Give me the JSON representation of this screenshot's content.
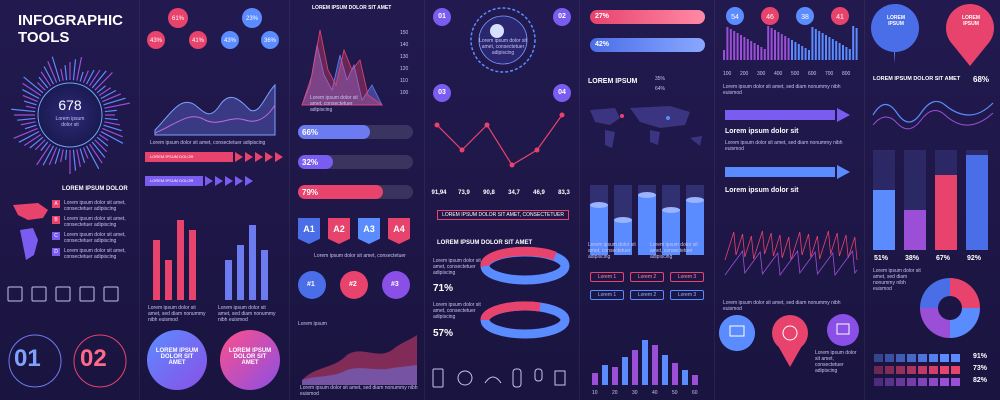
{
  "title": {
    "line1": "INFOGRAPHIC",
    "line2": "TOOLS"
  },
  "radial": {
    "value": "678",
    "caption1": "Lorem ipsum",
    "caption2": "dolor sit"
  },
  "bubbles": [
    "61%",
    "43%",
    "41%",
    "23%",
    "43%",
    "36%"
  ],
  "lorem_ipsum_dolor": "LOREM IPSUM DOLOR",
  "lorem_ipsum_dolor_sit_amet": "LOREM IPSUM DOLOR SIT AMET",
  "lorem_ipsum": "LOREM IPSUM",
  "lorem_ipsum_dolor_sit": "Lorem ipsum dolor sit",
  "small_text": "Lorem ipsum dolor sit amet, consectetuer adipiscing",
  "small_text2": "Lorem ipsum dolor sit amet, sed diam nonummy nibh euismod",
  "map_legend": [
    "A",
    "B",
    "C",
    "D"
  ],
  "arrow_bars": [
    "LOREM IPSUM DOLOR",
    "LOREM IPSUM DOLOR"
  ],
  "progress": [
    "66%",
    "32%",
    "79%"
  ],
  "tabs": [
    "A1",
    "A2",
    "A3",
    "A4"
  ],
  "tab_caption": "Lorem ipsum dolor sit amet, consectetuer",
  "badges": [
    "#1",
    "#2",
    "#3"
  ],
  "area_title": "Lorem ipsum",
  "steps": [
    "01",
    "02",
    "03",
    "04"
  ],
  "line_values": [
    "91,94",
    "73,9",
    "90,8",
    "34,7",
    "46,9",
    "83,3"
  ],
  "line_caption": "LOREM IPSUM DOLOR SIT AMET, CONSECTETUER",
  "donut_title": "LOREM IPSUM DOLOR SIT AMET",
  "donut_pcts": [
    "71%",
    "57%"
  ],
  "pct_bars": [
    "27%",
    "42%"
  ],
  "mini_pcts": [
    "35%",
    "64%"
  ],
  "lorem_buttons": [
    "Lorem 1",
    "Lorem 2",
    "Lorem 3",
    "Lorem 1",
    "Lorem 2",
    "Lorem 3"
  ],
  "pins": [
    "54",
    "46",
    "38",
    "41"
  ],
  "axis_ticks": [
    "100",
    "200",
    "300",
    "400",
    "500",
    "600",
    "700",
    "800"
  ],
  "lorem_ipsum_dolor_sit_amet2": "LOREM IPSUM DOLOR SIT AMET",
  "pct_68": "68%",
  "chevron_pcts": [
    "51%",
    "38%",
    "67%",
    "92%"
  ],
  "heat_pcts": [
    "91%",
    "73%",
    "82%"
  ],
  "big_nums": [
    "01",
    "02"
  ],
  "circle_labels": [
    "LOREM IPSUM DOLOR SIT AMET",
    "LOREM IPSUM DOLOR SIT AMET"
  ],
  "tick_y": [
    "150",
    "140",
    "130",
    "120",
    "110",
    "100"
  ],
  "tick_x_bot": [
    "10",
    "20",
    "30",
    "40",
    "50",
    "60"
  ],
  "colors": {
    "bg": "#1b1540",
    "pink": "#e8436d",
    "blue": "#6c7cf0",
    "purple": "#9b4fd6"
  }
}
